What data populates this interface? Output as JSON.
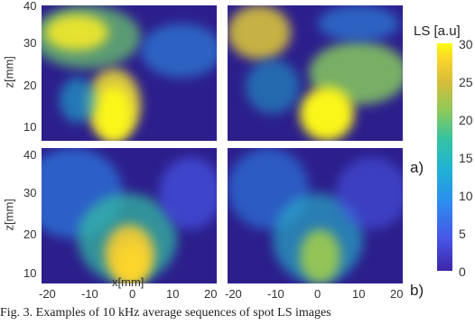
{
  "figure": {
    "y_axis_label": "z[mm]",
    "x_axis_label": "x[mm]",
    "y_ticks": [
      "40",
      "30",
      "20",
      "10"
    ],
    "x_ticks": [
      "-20",
      "-10",
      "0",
      "10",
      "20"
    ],
    "colorbar": {
      "title": "LS [a.u]",
      "ticks": [
        "30",
        "25",
        "20",
        "15",
        "10",
        "5",
        "0"
      ],
      "range": [
        0,
        30
      ],
      "colormap": "parula"
    },
    "panel_labels": {
      "a": "a)",
      "b": "b)"
    }
  },
  "caption": "Fig. 3. Examples of 10 kHz average sequences of spot LS images"
}
